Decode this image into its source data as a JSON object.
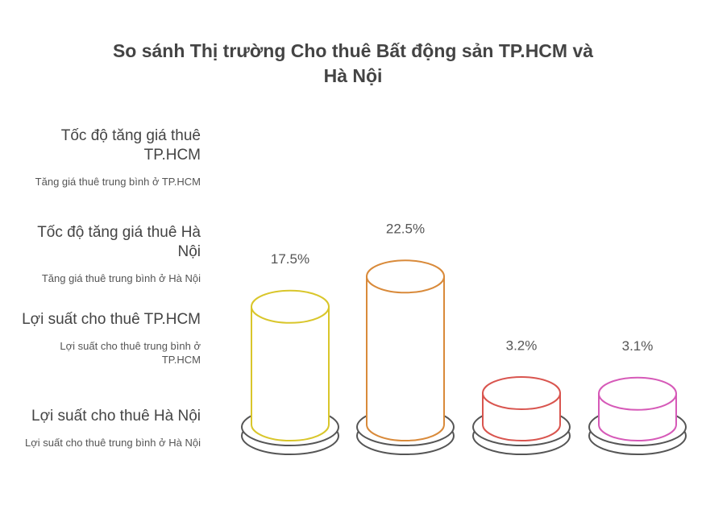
{
  "chart_data": {
    "type": "cylinder",
    "title": "So sánh Thị trường Cho thuê Bất động sản TP.HCM và Hà Nội",
    "categories": [
      "Tốc độ tăng giá thuê TP.HCM",
      "Tốc độ tăng giá thuê Hà Nội",
      "Lợi suất cho thuê TP.HCM",
      "Lợi suất cho thuê Hà Nội"
    ],
    "descriptions": [
      "Tăng giá thuê trung bình ở TP.HCM",
      "Tăng giá thuê trung bình ở Hà Nội",
      "Lợi suất cho thuê trung bình ở TP.HCM",
      "Lợi suất cho thuê trung bình ở Hà Nội"
    ],
    "values": [
      17.5,
      22.5,
      3.2,
      3.1
    ],
    "value_labels": [
      "17.5%",
      "22.5%",
      "3.2%",
      "3.1%"
    ],
    "colors": [
      "#d9c62b",
      "#d98a3a",
      "#d9554f",
      "#d65ab8"
    ]
  }
}
